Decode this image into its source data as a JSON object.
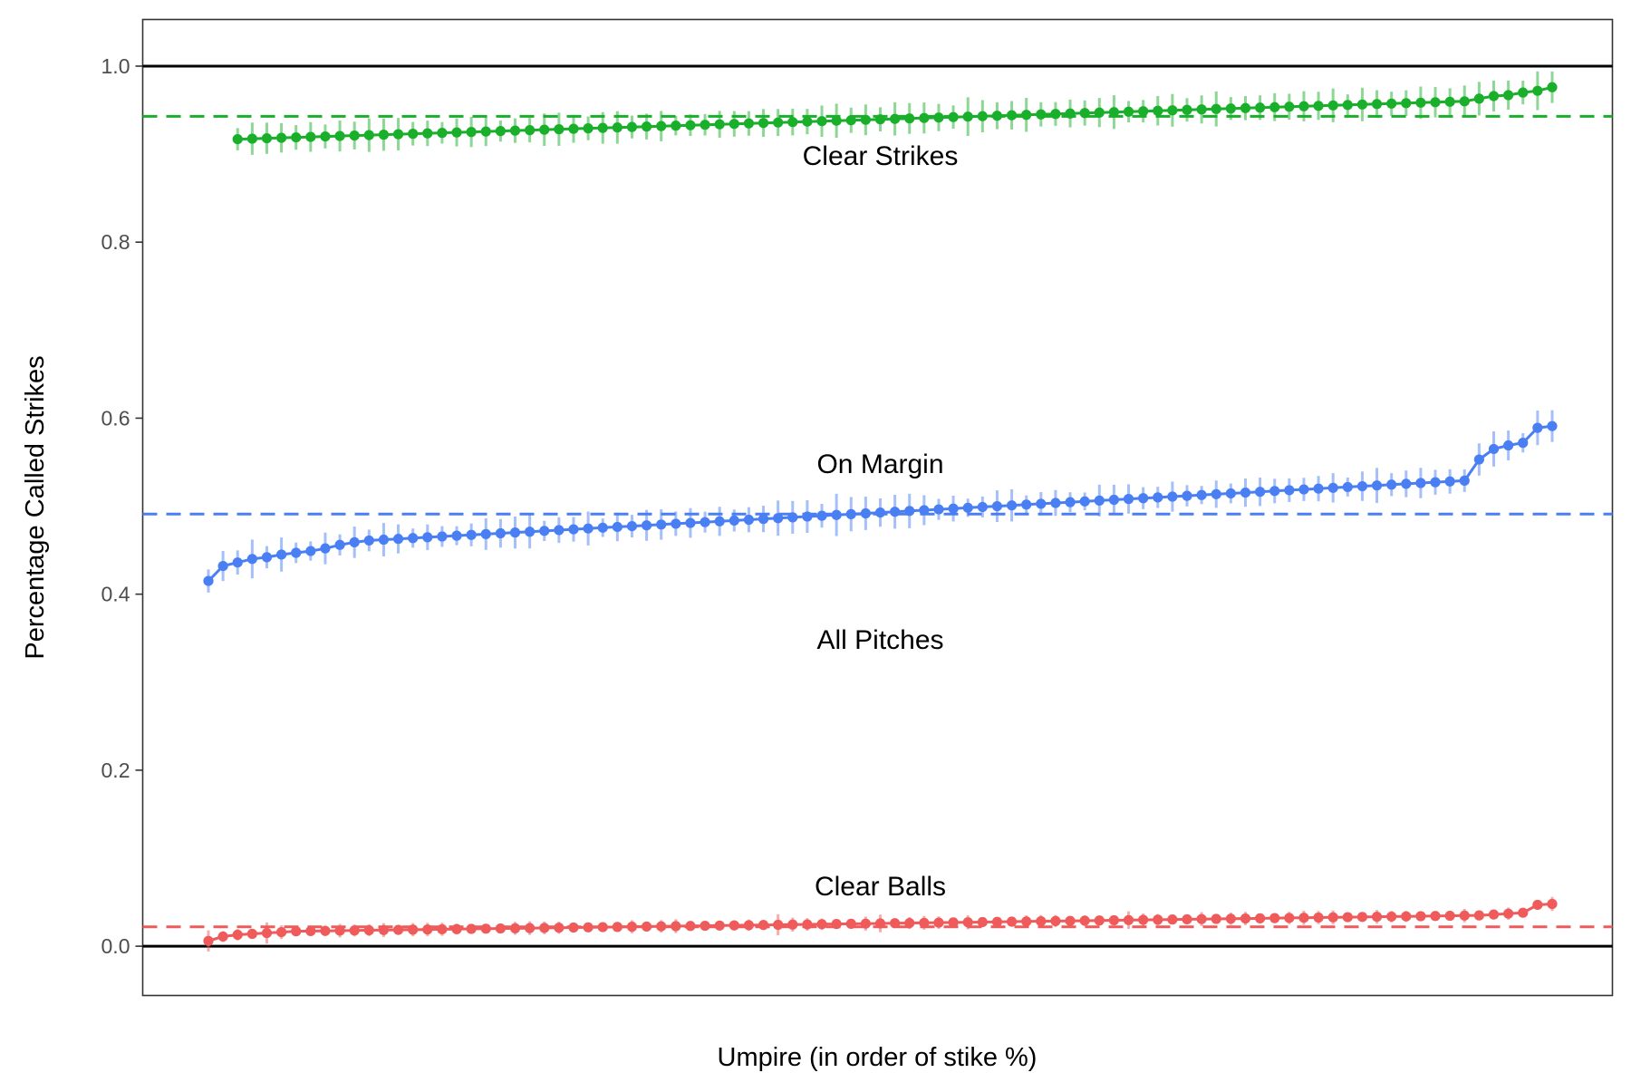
{
  "chart_data": {
    "type": "line",
    "title": "",
    "xlabel": "Umpire (in order of stike %)",
    "ylabel": "Percentage Called Strikes",
    "ylim": [
      -0.056,
      1.053
    ],
    "yticks": [
      0.0,
      0.2,
      0.4,
      0.6,
      0.8,
      1.0
    ],
    "ytick_labels": [
      "0.0",
      "0.2",
      "0.4",
      "0.6",
      "0.8",
      "1.0"
    ],
    "x_count": 93,
    "grid": false,
    "legend": "none",
    "reference_lines": [
      {
        "name": "upper-bound",
        "y": 1.0,
        "color": "#000000",
        "style": "solid"
      },
      {
        "name": "lower-bound",
        "y": 0.0,
        "color": "#000000",
        "style": "solid"
      }
    ],
    "series": [
      {
        "key": "clear-strikes",
        "label": "Clear Strikes",
        "label_pos": {
          "x": 47,
          "y": 0.898
        },
        "color": "#1aaf2a",
        "mean": 0.943,
        "x_start": 3,
        "x_end": 93,
        "start": 0.917,
        "end": 0.976,
        "tail": [
          0.96,
          0.963,
          0.966,
          0.967,
          0.97,
          0.972,
          0.976
        ],
        "err": [
          0.012,
          0.02
        ],
        "big_errs": [
          {
            "i": 4,
            "e": 0.014
          },
          {
            "i": 18,
            "e": 0.012
          },
          {
            "i": 30,
            "e": 0.011
          },
          {
            "i": 50,
            "e": 0.022
          },
          {
            "i": 66,
            "e": 0.016
          },
          {
            "i": 70,
            "e": 0.014
          },
          {
            "i": 76,
            "e": 0.012
          },
          {
            "i": 84,
            "e": 0.018
          },
          {
            "i": 89,
            "e": 0.022
          },
          {
            "i": 92,
            "e": 0.02
          }
        ]
      },
      {
        "key": "on-margin",
        "label": "On Margin",
        "label_pos": {
          "x": 47,
          "y": 0.548
        },
        "color": "#4a7ff3",
        "mean": 0.491,
        "x_start": 1,
        "x_end": 93,
        "start": 0.415,
        "end": 0.591,
        "head": [
          0.415,
          0.432,
          0.436,
          0.44,
          0.442,
          0.445,
          0.447,
          0.449,
          0.452,
          0.456,
          0.459,
          0.461
        ],
        "tail": [
          0.529,
          0.553,
          0.565,
          0.569,
          0.572,
          0.589,
          0.591
        ],
        "err": [
          0.01,
          0.02
        ],
        "big_errs": [
          {
            "i": 3,
            "e": 0.022
          },
          {
            "i": 8,
            "e": 0.018
          },
          {
            "i": 25,
            "e": 0.014
          },
          {
            "i": 39,
            "e": 0.02
          },
          {
            "i": 43,
            "e": 0.024
          },
          {
            "i": 54,
            "e": 0.018
          },
          {
            "i": 88,
            "e": 0.02
          },
          {
            "i": 92,
            "e": 0.018
          }
        ]
      },
      {
        "key": "clear-balls",
        "label": "Clear Balls",
        "label_pos": {
          "x": 47,
          "y": 0.068
        },
        "color": "#ef5a5a",
        "mean": 0.022,
        "x_start": 1,
        "x_end": 93,
        "start": 0.006,
        "end": 0.048,
        "head": [
          0.006,
          0.011,
          0.013,
          0.014,
          0.015,
          0.016,
          0.017
        ],
        "tail": [
          0.035,
          0.036,
          0.037,
          0.038,
          0.047,
          0.048
        ],
        "err": [
          0.004,
          0.008
        ],
        "big_errs": [
          {
            "i": 0,
            "e": 0.012
          },
          {
            "i": 4,
            "e": 0.012
          },
          {
            "i": 39,
            "e": 0.012
          },
          {
            "i": 46,
            "e": 0.01
          },
          {
            "i": 63,
            "e": 0.01
          }
        ]
      }
    ],
    "annotations": [
      {
        "text": "All Pitches",
        "x": 47,
        "y": 0.348
      }
    ]
  }
}
